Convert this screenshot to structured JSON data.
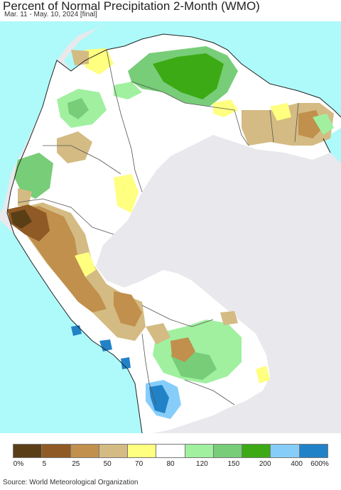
{
  "header": {
    "title": "Percent of Normal Precipitation 2-Month (WMO)",
    "subtitle": "Mar. 11 - May. 10, 2024 [final]"
  },
  "legend": {
    "colors": [
      "#5a3e16",
      "#8f5a25",
      "#c0904c",
      "#d4bb83",
      "#ffff80",
      "#ffffff",
      "#a0f0a0",
      "#78cd78",
      "#3caa14",
      "#87cdfa",
      "#2282c8"
    ],
    "ticks": [
      "0%",
      "5",
      "25",
      "50",
      "70",
      "80",
      "120",
      "150",
      "200",
      "400",
      "600%"
    ]
  },
  "map": {
    "ocean_color": "#aefafa",
    "land_color": "#ffffff",
    "nodata_color": "#e9e8ec"
  },
  "footer": {
    "source": "Source: World Meteorological Organization"
  }
}
